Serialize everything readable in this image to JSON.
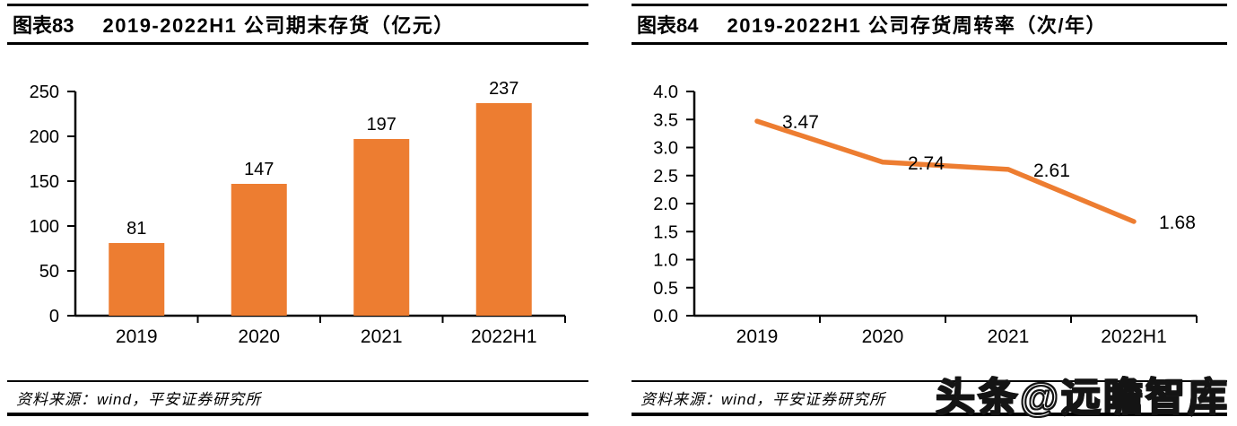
{
  "watermark": {
    "text": "头条@远瞻智库"
  },
  "colors": {
    "accent_orange": "#ED7D31",
    "axis_black": "#000000"
  },
  "chart_data": [
    {
      "type": "bar",
      "figure_label": "图表83",
      "title": "2019-2022H1 公司期末存货（亿元）",
      "categories": [
        "2019",
        "2020",
        "2021",
        "2022H1"
      ],
      "values": [
        81,
        147,
        197,
        237
      ],
      "value_labels": [
        "81",
        "147",
        "197",
        "237"
      ],
      "ytick_labels": [
        "0",
        "50",
        "100",
        "150",
        "200",
        "250"
      ],
      "ylim": [
        0,
        250
      ],
      "ytick_step": 50,
      "ytick_decimals": 0,
      "bar_color": "#ED7D31",
      "grid": false,
      "legend": "none",
      "source": "资料来源：wind，平安证券研究所"
    },
    {
      "type": "line",
      "figure_label": "图表84",
      "title": "2019-2022H1 公司存货周转率（次/年）",
      "categories": [
        "2019",
        "2020",
        "2021",
        "2022H1"
      ],
      "values": [
        3.47,
        2.74,
        2.61,
        1.68
      ],
      "value_labels": [
        "3.47",
        "2.74",
        "2.61",
        "1.68"
      ],
      "ytick_labels": [
        "0.0",
        "0.5",
        "1.0",
        "1.5",
        "2.0",
        "2.5",
        "3.0",
        "3.5",
        "4.0"
      ],
      "ylim": [
        0,
        4.0
      ],
      "ytick_step": 0.5,
      "ytick_decimals": 1,
      "line_color": "#ED7D31",
      "grid": false,
      "legend": "none",
      "source": "资料来源：wind，平安证券研究所"
    }
  ]
}
